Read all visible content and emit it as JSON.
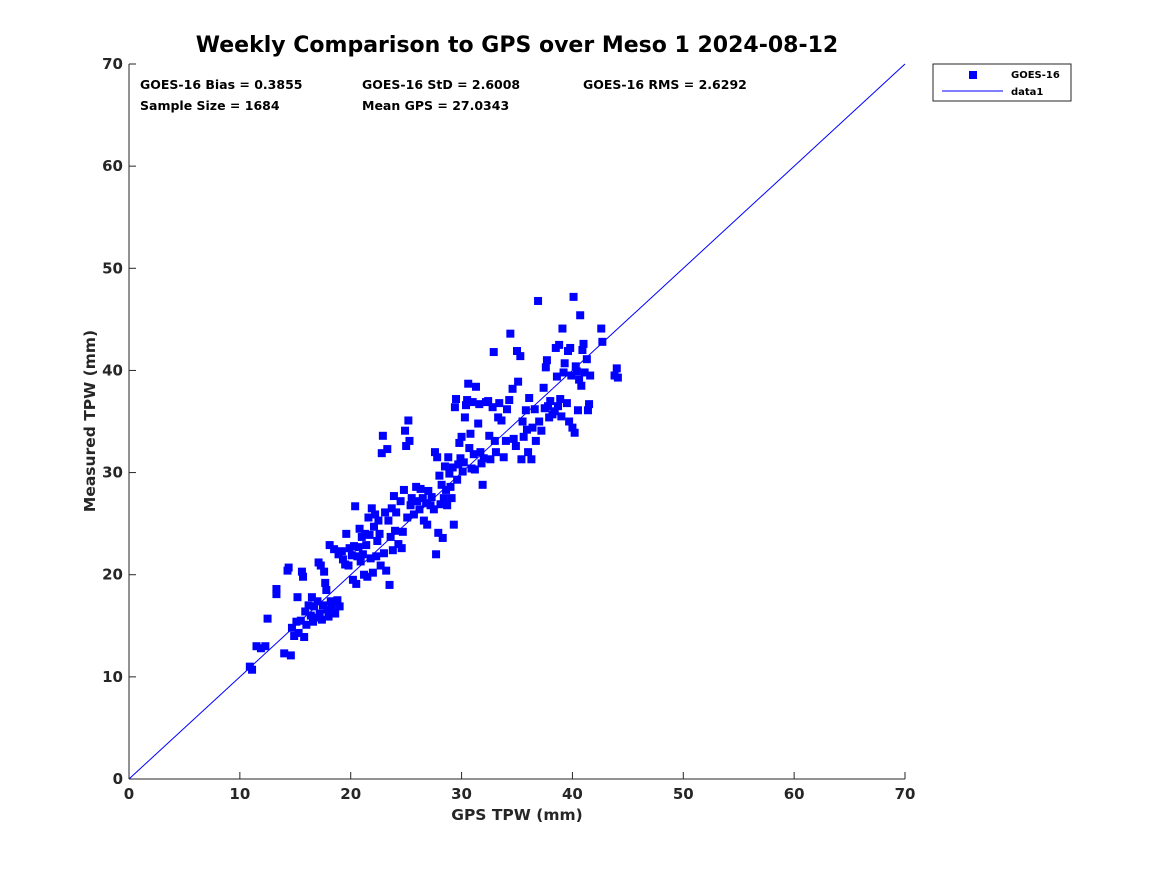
{
  "chart_data": {
    "type": "scatter",
    "title": "Weekly Comparison to GPS over Meso 1 2024-08-12",
    "xlabel": "GPS TPW (mm)",
    "ylabel": "Measured TPW (mm)",
    "xlim": [
      0,
      70
    ],
    "ylim": [
      0,
      70
    ],
    "xticks": [
      "0",
      "10",
      "20",
      "30",
      "40",
      "50",
      "60",
      "70"
    ],
    "yticks": [
      "0",
      "10",
      "20",
      "30",
      "40",
      "50",
      "60",
      "70"
    ],
    "grid": false,
    "legend_position": "outside top-right",
    "legend": [
      {
        "label": "GOES-16",
        "marker": "square",
        "color": "#0000ff"
      },
      {
        "label": "data1",
        "line": true,
        "color": "#0000ff"
      }
    ],
    "stats": {
      "bias": "GOES-16 Bias = 0.3855",
      "std": "GOES-16 StD = 2.6008",
      "rms": "GOES-16 RMS = 2.6292",
      "sample": "Sample Size = 1684",
      "mean": "Mean GPS = 27.0343"
    },
    "reference_line": {
      "name": "data1",
      "x": [
        0,
        70
      ],
      "y": [
        0,
        70
      ],
      "color": "#0000ff"
    },
    "series": [
      {
        "name": "GOES-16",
        "color": "#0000ff",
        "marker": "square",
        "points": [
          [
            10.9,
            11.0
          ],
          [
            11.1,
            10.7
          ],
          [
            11.5,
            13.0
          ],
          [
            11.9,
            12.8
          ],
          [
            12.3,
            13.0
          ],
          [
            12.5,
            15.7
          ],
          [
            13.3,
            18.1
          ],
          [
            13.3,
            18.6
          ],
          [
            14.0,
            12.3
          ],
          [
            14.3,
            20.4
          ],
          [
            14.4,
            20.7
          ],
          [
            14.6,
            12.1
          ],
          [
            14.7,
            14.8
          ],
          [
            14.9,
            14.0
          ],
          [
            15.1,
            15.4
          ],
          [
            15.2,
            17.8
          ],
          [
            15.3,
            14.3
          ],
          [
            15.5,
            15.5
          ],
          [
            15.6,
            20.3
          ],
          [
            15.7,
            19.8
          ],
          [
            15.8,
            13.9
          ],
          [
            15.9,
            16.4
          ],
          [
            16.0,
            15.1
          ],
          [
            16.2,
            17.0
          ],
          [
            16.4,
            16.0
          ],
          [
            16.5,
            17.8
          ],
          [
            16.6,
            15.4
          ],
          [
            16.7,
            16.9
          ],
          [
            16.9,
            15.8
          ],
          [
            17.0,
            17.4
          ],
          [
            17.1,
            21.2
          ],
          [
            17.2,
            16.2
          ],
          [
            17.3,
            20.9
          ],
          [
            17.4,
            15.6
          ],
          [
            17.5,
            17.0
          ],
          [
            17.6,
            20.3
          ],
          [
            17.7,
            19.2
          ],
          [
            17.8,
            18.5
          ],
          [
            17.9,
            16.6
          ],
          [
            18.0,
            15.9
          ],
          [
            18.1,
            22.9
          ],
          [
            18.2,
            17.4
          ],
          [
            18.3,
            16.8
          ],
          [
            18.5,
            22.5
          ],
          [
            18.6,
            16.2
          ],
          [
            18.8,
            17.5
          ],
          [
            18.9,
            22.0
          ],
          [
            19.0,
            16.9
          ],
          [
            19.2,
            22.3
          ],
          [
            19.3,
            21.5
          ],
          [
            19.5,
            21.0
          ],
          [
            19.6,
            24.0
          ],
          [
            19.8,
            20.9
          ],
          [
            19.9,
            22.6
          ],
          [
            20.1,
            21.9
          ],
          [
            20.2,
            19.5
          ],
          [
            20.3,
            22.8
          ],
          [
            20.4,
            26.7
          ],
          [
            20.5,
            19.1
          ],
          [
            20.6,
            21.8
          ],
          [
            20.7,
            22.7
          ],
          [
            20.8,
            24.5
          ],
          [
            20.9,
            21.3
          ],
          [
            21.0,
            23.7
          ],
          [
            21.1,
            22.0
          ],
          [
            21.2,
            20.0
          ],
          [
            21.3,
            24.0
          ],
          [
            21.4,
            22.9
          ],
          [
            21.5,
            19.8
          ],
          [
            21.6,
            25.6
          ],
          [
            21.7,
            23.9
          ],
          [
            21.8,
            21.6
          ],
          [
            21.9,
            26.5
          ],
          [
            22.0,
            20.2
          ],
          [
            22.1,
            24.7
          ],
          [
            22.2,
            25.9
          ],
          [
            22.3,
            21.8
          ],
          [
            22.4,
            23.3
          ],
          [
            22.5,
            25.3
          ],
          [
            22.6,
            24.0
          ],
          [
            22.7,
            20.9
          ],
          [
            22.8,
            31.9
          ],
          [
            22.9,
            33.6
          ],
          [
            23.0,
            22.1
          ],
          [
            23.1,
            26.1
          ],
          [
            23.2,
            20.4
          ],
          [
            23.3,
            32.3
          ],
          [
            23.4,
            25.3
          ],
          [
            23.5,
            19.0
          ],
          [
            23.6,
            23.7
          ],
          [
            23.7,
            26.5
          ],
          [
            23.8,
            22.4
          ],
          [
            23.9,
            27.7
          ],
          [
            24.0,
            24.3
          ],
          [
            24.1,
            26.1
          ],
          [
            24.3,
            23.0
          ],
          [
            24.5,
            27.2
          ],
          [
            24.6,
            22.6
          ],
          [
            24.7,
            24.2
          ],
          [
            24.8,
            28.3
          ],
          [
            24.9,
            34.1
          ],
          [
            25.0,
            32.6
          ],
          [
            25.1,
            25.6
          ],
          [
            25.2,
            35.1
          ],
          [
            25.3,
            33.1
          ],
          [
            25.4,
            26.8
          ],
          [
            25.5,
            27.5
          ],
          [
            25.7,
            25.9
          ],
          [
            25.9,
            28.6
          ],
          [
            26.0,
            27.2
          ],
          [
            26.2,
            26.4
          ],
          [
            26.3,
            28.4
          ],
          [
            26.5,
            27.5
          ],
          [
            26.6,
            25.3
          ],
          [
            26.8,
            27.0
          ],
          [
            26.9,
            24.9
          ],
          [
            27.0,
            28.2
          ],
          [
            27.2,
            26.8
          ],
          [
            27.3,
            27.6
          ],
          [
            27.5,
            26.4
          ],
          [
            27.6,
            32.0
          ],
          [
            27.7,
            22.0
          ],
          [
            27.8,
            31.5
          ],
          [
            27.9,
            24.1
          ],
          [
            28.0,
            29.7
          ],
          [
            28.1,
            26.9
          ],
          [
            28.2,
            28.8
          ],
          [
            28.3,
            23.6
          ],
          [
            28.4,
            27.5
          ],
          [
            28.5,
            30.6
          ],
          [
            28.6,
            28.3
          ],
          [
            28.7,
            26.8
          ],
          [
            28.8,
            31.5
          ],
          [
            28.9,
            29.9
          ],
          [
            29.0,
            28.6
          ],
          [
            29.1,
            27.5
          ],
          [
            29.2,
            30.5
          ],
          [
            29.3,
            24.9
          ],
          [
            29.4,
            36.4
          ],
          [
            29.5,
            37.2
          ],
          [
            29.6,
            29.3
          ],
          [
            29.7,
            30.8
          ],
          [
            29.8,
            32.9
          ],
          [
            29.9,
            31.4
          ],
          [
            30.0,
            33.5
          ],
          [
            30.1,
            30.1
          ],
          [
            30.2,
            31.0
          ],
          [
            30.3,
            35.4
          ],
          [
            30.4,
            36.6
          ],
          [
            30.5,
            37.1
          ],
          [
            30.6,
            38.7
          ],
          [
            30.7,
            32.4
          ],
          [
            30.8,
            33.8
          ],
          [
            30.9,
            30.4
          ],
          [
            31.0,
            36.9
          ],
          [
            31.1,
            31.8
          ],
          [
            31.2,
            30.3
          ],
          [
            31.3,
            38.4
          ],
          [
            31.5,
            34.8
          ],
          [
            31.6,
            36.7
          ],
          [
            31.7,
            32.0
          ],
          [
            31.8,
            30.9
          ],
          [
            31.9,
            28.8
          ],
          [
            32.0,
            31.4
          ],
          [
            32.2,
            36.9
          ],
          [
            32.4,
            37.0
          ],
          [
            32.5,
            33.6
          ],
          [
            32.6,
            31.3
          ],
          [
            32.8,
            36.4
          ],
          [
            32.9,
            41.8
          ],
          [
            33.0,
            33.1
          ],
          [
            33.1,
            32.0
          ],
          [
            33.3,
            35.4
          ],
          [
            33.4,
            36.8
          ],
          [
            33.6,
            35.1
          ],
          [
            33.8,
            31.5
          ],
          [
            34.0,
            33.1
          ],
          [
            34.1,
            36.2
          ],
          [
            34.3,
            37.1
          ],
          [
            34.4,
            43.6
          ],
          [
            34.6,
            38.2
          ],
          [
            34.7,
            33.3
          ],
          [
            34.9,
            32.6
          ],
          [
            35.0,
            41.9
          ],
          [
            35.1,
            38.9
          ],
          [
            35.3,
            41.4
          ],
          [
            35.4,
            31.3
          ],
          [
            35.5,
            35.0
          ],
          [
            35.6,
            33.5
          ],
          [
            35.8,
            36.1
          ],
          [
            35.9,
            34.2
          ],
          [
            36.0,
            32.0
          ],
          [
            36.1,
            37.3
          ],
          [
            36.3,
            31.3
          ],
          [
            36.4,
            34.4
          ],
          [
            36.6,
            36.2
          ],
          [
            36.7,
            33.1
          ],
          [
            36.9,
            46.8
          ],
          [
            37.0,
            35.0
          ],
          [
            37.2,
            34.1
          ],
          [
            37.4,
            38.3
          ],
          [
            37.5,
            36.3
          ],
          [
            37.6,
            40.3
          ],
          [
            37.7,
            41.0
          ],
          [
            37.8,
            36.5
          ],
          [
            37.9,
            35.4
          ],
          [
            38.0,
            37.0
          ],
          [
            38.2,
            35.7
          ],
          [
            38.4,
            36.0
          ],
          [
            38.5,
            42.2
          ],
          [
            38.6,
            39.4
          ],
          [
            38.7,
            36.5
          ],
          [
            38.8,
            42.5
          ],
          [
            38.9,
            37.2
          ],
          [
            39.0,
            35.5
          ],
          [
            39.1,
            44.1
          ],
          [
            39.2,
            39.8
          ],
          [
            39.3,
            40.7
          ],
          [
            39.5,
            36.8
          ],
          [
            39.6,
            41.9
          ],
          [
            39.7,
            35.0
          ],
          [
            39.8,
            42.2
          ],
          [
            39.9,
            39.5
          ],
          [
            40.0,
            34.4
          ],
          [
            40.1,
            47.2
          ],
          [
            40.2,
            33.9
          ],
          [
            40.3,
            40.4
          ],
          [
            40.4,
            39.9
          ],
          [
            40.5,
            36.1
          ],
          [
            40.6,
            39.1
          ],
          [
            40.7,
            45.4
          ],
          [
            40.8,
            38.5
          ],
          [
            40.9,
            42.0
          ],
          [
            41.0,
            42.6
          ],
          [
            41.1,
            39.8
          ],
          [
            41.3,
            41.1
          ],
          [
            41.4,
            36.1
          ],
          [
            41.5,
            36.7
          ],
          [
            41.6,
            39.5
          ],
          [
            42.6,
            44.1
          ],
          [
            42.7,
            42.8
          ],
          [
            43.8,
            39.5
          ],
          [
            44.0,
            40.2
          ],
          [
            44.1,
            39.3
          ]
        ]
      }
    ]
  }
}
